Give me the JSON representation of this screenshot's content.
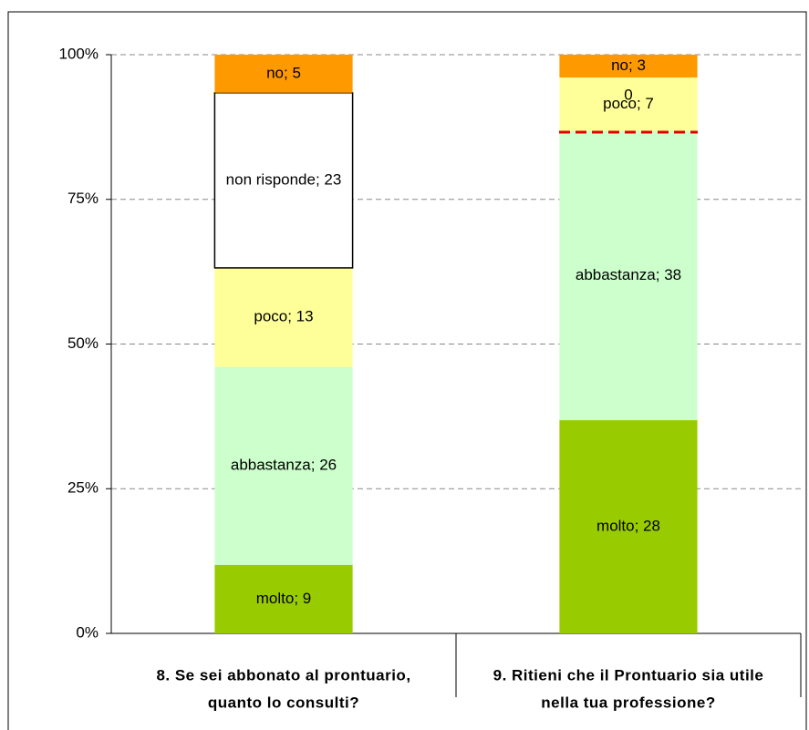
{
  "chart_data": {
    "type": "stacked_bar_percent",
    "categories": [
      [
        "8. Se sei abbonato al prontuario,",
        "quanto lo consulti?"
      ],
      [
        "9. Ritieni che il Prontuario sia utile",
        "nella tua professione?"
      ]
    ],
    "series": [
      {
        "name": "molto",
        "color": "#99cc00",
        "values": [
          9,
          28
        ],
        "value_labels": [
          "molto; 9",
          "molto; 28"
        ]
      },
      {
        "name": "abbastanza",
        "color": "#ccffcc",
        "values": [
          26,
          38
        ],
        "value_labels": [
          "abbastanza; 26",
          "abbastanza; 38"
        ]
      },
      {
        "name": "poco",
        "color": "#ffff99",
        "values": [
          13,
          7
        ],
        "value_labels": [
          "poco; 13",
          "poco; 7"
        ]
      },
      {
        "name": "non risponde",
        "color": "#ffffff",
        "values": [
          23,
          0
        ],
        "value_labels": [
          "non risponde; 23",
          "0"
        ]
      },
      {
        "name": "no",
        "color": "#ff9900",
        "values": [
          5,
          3
        ],
        "value_labels": [
          "no; 5",
          "no; 3"
        ]
      }
    ],
    "ylim": [
      0,
      100
    ],
    "yticks": [
      {
        "value": 0,
        "label": "0%"
      },
      {
        "value": 25,
        "label": "25%"
      },
      {
        "value": 50,
        "label": "50%"
      },
      {
        "value": 75,
        "label": "75%"
      },
      {
        "value": 100,
        "label": "100%"
      }
    ],
    "grid": true
  }
}
